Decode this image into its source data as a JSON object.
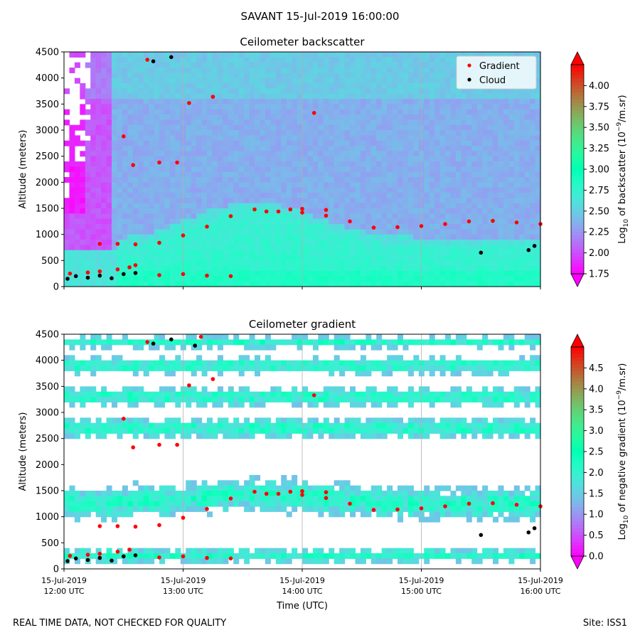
{
  "suptitle": "SAVANT 15-Jul-2019 16:00:00",
  "footer": {
    "left": "REAL TIME DATA, NOT CHECKED FOR QUALITY",
    "right": "Site: ISS1"
  },
  "colors": {
    "gradient_marker": "#ff0000",
    "cloud_marker": "#000000",
    "grid": "#b0b0b0"
  },
  "chart_data": [
    {
      "type": "heatmap",
      "title": "Ceilometer backscatter",
      "ylabel": "Altitude (meters)",
      "xlabel": "",
      "ylim": [
        0,
        4500
      ],
      "yticks": [
        0,
        500,
        1000,
        1500,
        2000,
        2500,
        3000,
        3500,
        4000,
        4500
      ],
      "xlim": [
        "12:00",
        "16:00"
      ],
      "xticks": [
        "12:00",
        "13:00",
        "14:00",
        "15:00",
        "16:00"
      ],
      "grid": "vertical at hourly ticks",
      "legend": {
        "placement": "top-right",
        "entries": [
          "Gradient",
          "Cloud"
        ]
      },
      "colorbar": {
        "label_parts": [
          "Log",
          "10",
          " of backscatter (10",
          "−9",
          "/m.sr)"
        ],
        "range": [
          1.75,
          4.25
        ],
        "ticks": [
          "1.75",
          "2.00",
          "2.25",
          "2.50",
          "2.75",
          "3.00",
          "3.25",
          "3.50",
          "3.75",
          "4.00"
        ]
      },
      "series": [
        {
          "name": "Gradient",
          "points": [
            [
              12.05,
              250
            ],
            [
              12.2,
              270
            ],
            [
              12.3,
              290
            ],
            [
              12.45,
              330
            ],
            [
              12.55,
              370
            ],
            [
              12.6,
              410
            ],
            [
              12.8,
              220
            ],
            [
              13.0,
              240
            ],
            [
              13.2,
              210
            ],
            [
              13.4,
              200
            ],
            [
              12.3,
              820
            ],
            [
              12.45,
              820
            ],
            [
              12.6,
              810
            ],
            [
              12.8,
              840
            ],
            [
              13.0,
              980
            ],
            [
              13.2,
              1150
            ],
            [
              13.4,
              1350
            ],
            [
              13.6,
              1480
            ],
            [
              13.8,
              1440
            ],
            [
              14.0,
              1420
            ],
            [
              14.2,
              1360
            ],
            [
              14.4,
              1250
            ],
            [
              14.6,
              1130
            ],
            [
              14.8,
              1140
            ],
            [
              15.0,
              1160
            ],
            [
              15.2,
              1200
            ],
            [
              15.4,
              1250
            ],
            [
              15.6,
              1260
            ],
            [
              15.8,
              1230
            ],
            [
              16.0,
              1200
            ],
            [
              13.7,
              1440
            ],
            [
              13.9,
              1480
            ],
            [
              14.0,
              1490
            ],
            [
              14.2,
              1470
            ],
            [
              12.5,
              2880
            ],
            [
              12.58,
              2330
            ],
            [
              12.8,
              2380
            ],
            [
              12.95,
              2380
            ],
            [
              13.05,
              3520
            ],
            [
              13.25,
              3640
            ],
            [
              14.1,
              3330
            ],
            [
              12.7,
              4350
            ]
          ]
        },
        {
          "name": "Cloud",
          "points": [
            [
              12.03,
              150
            ],
            [
              12.1,
              200
            ],
            [
              12.2,
              170
            ],
            [
              12.3,
              210
            ],
            [
              12.4,
              160
            ],
            [
              12.5,
              240
            ],
            [
              12.6,
              260
            ],
            [
              12.75,
              4320
            ],
            [
              12.9,
              4400
            ],
            [
              15.5,
              650
            ],
            [
              15.9,
              700
            ],
            [
              15.95,
              780
            ]
          ]
        }
      ]
    },
    {
      "type": "heatmap",
      "title": "Ceilometer gradient",
      "ylabel": "Altitude (meters)",
      "xlabel": "Time (UTC)",
      "ylim": [
        0,
        4500
      ],
      "yticks": [
        0,
        500,
        1000,
        1500,
        2000,
        2500,
        3000,
        3500,
        4000,
        4500
      ],
      "xlim": [
        "12:00",
        "16:00"
      ],
      "xticks": [
        "12:00",
        "13:00",
        "14:00",
        "15:00",
        "16:00"
      ],
      "xtick_labels": [
        {
          "date": "15-Jul-2019",
          "time": "12:00 UTC"
        },
        {
          "date": "15-Jul-2019",
          "time": "13:00 UTC"
        },
        {
          "date": "15-Jul-2019",
          "time": "14:00 UTC"
        },
        {
          "date": "15-Jul-2019",
          "time": "15:00 UTC"
        },
        {
          "date": "15-Jul-2019",
          "time": "16:00 UTC"
        }
      ],
      "grid": "vertical at hourly ticks",
      "colorbar": {
        "label_parts": [
          "Log",
          "10",
          " of negative gradient (10",
          "−9",
          "/m.sr)"
        ],
        "range": [
          0.0,
          5.0
        ],
        "ticks": [
          "0.0",
          "0.5",
          "1.0",
          "1.5",
          "2.0",
          "2.5",
          "3.0",
          "3.5",
          "4.0",
          "4.5"
        ]
      },
      "series": [
        {
          "name": "Gradient",
          "points": [
            [
              12.05,
              250
            ],
            [
              12.2,
              270
            ],
            [
              12.3,
              290
            ],
            [
              12.45,
              330
            ],
            [
              12.55,
              370
            ],
            [
              12.8,
              220
            ],
            [
              13.0,
              240
            ],
            [
              13.2,
              210
            ],
            [
              13.4,
              200
            ],
            [
              12.3,
              820
            ],
            [
              12.45,
              820
            ],
            [
              12.6,
              810
            ],
            [
              12.8,
              840
            ],
            [
              13.0,
              980
            ],
            [
              13.2,
              1150
            ],
            [
              13.4,
              1350
            ],
            [
              13.6,
              1480
            ],
            [
              13.8,
              1440
            ],
            [
              14.0,
              1420
            ],
            [
              14.2,
              1360
            ],
            [
              14.4,
              1250
            ],
            [
              14.6,
              1130
            ],
            [
              14.8,
              1140
            ],
            [
              15.0,
              1160
            ],
            [
              15.2,
              1200
            ],
            [
              15.4,
              1250
            ],
            [
              15.6,
              1260
            ],
            [
              15.8,
              1230
            ],
            [
              16.0,
              1200
            ],
            [
              13.7,
              1440
            ],
            [
              13.9,
              1480
            ],
            [
              14.0,
              1490
            ],
            [
              14.2,
              1470
            ],
            [
              12.5,
              2880
            ],
            [
              12.58,
              2330
            ],
            [
              12.8,
              2380
            ],
            [
              12.95,
              2380
            ],
            [
              13.05,
              3520
            ],
            [
              13.25,
              3640
            ],
            [
              14.1,
              3330
            ],
            [
              12.7,
              4350
            ],
            [
              13.15,
              4450
            ]
          ]
        },
        {
          "name": "Cloud",
          "points": [
            [
              12.03,
              150
            ],
            [
              12.1,
              200
            ],
            [
              12.2,
              170
            ],
            [
              12.3,
              210
            ],
            [
              12.4,
              160
            ],
            [
              12.5,
              240
            ],
            [
              12.6,
              260
            ],
            [
              12.75,
              4320
            ],
            [
              12.9,
              4400
            ],
            [
              13.1,
              4280
            ],
            [
              15.5,
              650
            ],
            [
              15.9,
              700
            ],
            [
              15.95,
              780
            ]
          ]
        }
      ]
    }
  ]
}
